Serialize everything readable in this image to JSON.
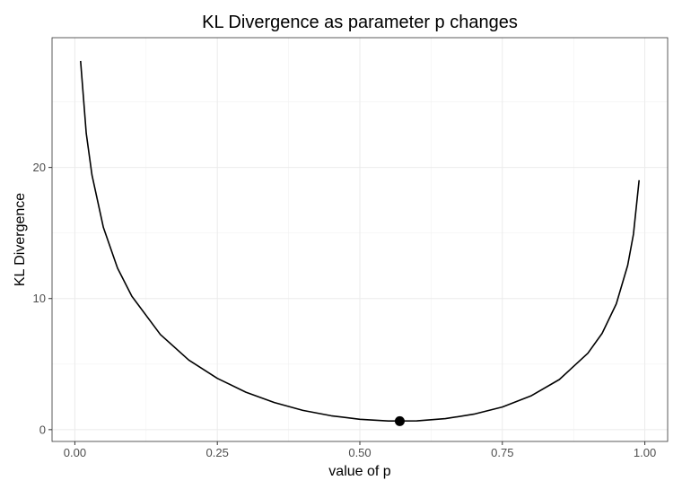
{
  "chart_data": {
    "type": "line",
    "title": "KL Divergence as parameter p changes",
    "xlabel": "value of p",
    "ylabel": "KL Divergence",
    "xlim": [
      -0.04,
      1.04
    ],
    "ylim": [
      -0.9,
      29.9
    ],
    "grid": true,
    "x_ticks": [
      0,
      0.25,
      0.5,
      0.75,
      1
    ],
    "x_tick_labels": [
      "0.00",
      "0.25",
      "0.50",
      "0.75",
      "1.00"
    ],
    "y_ticks": [
      0,
      10,
      20
    ],
    "y_tick_labels": [
      "0",
      "10",
      "20"
    ],
    "series": [
      {
        "name": "KL divergence",
        "color": "#000000",
        "x": [
          0.01,
          0.02,
          0.03,
          0.05,
          0.075,
          0.1,
          0.15,
          0.2,
          0.25,
          0.3,
          0.35,
          0.4,
          0.45,
          0.5,
          0.55,
          0.6,
          0.65,
          0.7,
          0.75,
          0.8,
          0.85,
          0.9,
          0.925,
          0.95,
          0.97,
          0.98,
          0.99
        ],
        "y": [
          28.13,
          22.61,
          19.42,
          15.43,
          12.32,
          10.18,
          7.26,
          5.31,
          3.91,
          2.86,
          2.07,
          1.47,
          1.06,
          0.79,
          0.66,
          0.67,
          0.84,
          1.18,
          1.73,
          2.57,
          3.82,
          5.83,
          7.35,
          9.6,
          12.54,
          14.91,
          19.03
        ]
      }
    ],
    "highlight_point": {
      "x": 0.57,
      "y": 0.65,
      "color": "#000000"
    }
  }
}
